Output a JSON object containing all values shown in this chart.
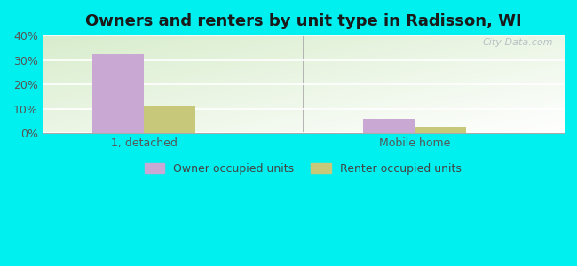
{
  "title": "Owners and renters by unit type in Radisson, WI",
  "categories": [
    "1, detached",
    "Mobile home"
  ],
  "owner_values": [
    32.4,
    6.0
  ],
  "renter_values": [
    11.0,
    2.5
  ],
  "owner_color": "#c9a8d4",
  "renter_color": "#c8c87a",
  "background_color": "#00f0f0",
  "chart_bg_green": "#d8edcc",
  "chart_bg_white": "#f8fff8",
  "ylim": [
    0,
    40
  ],
  "yticks": [
    0,
    10,
    20,
    30,
    40
  ],
  "title_fontsize": 13,
  "legend_labels": [
    "Owner occupied units",
    "Renter occupied units"
  ],
  "bar_width": 0.38,
  "group_positions": [
    1.0,
    3.0
  ],
  "watermark": "City-Data.com",
  "xlim": [
    0.25,
    4.1
  ]
}
